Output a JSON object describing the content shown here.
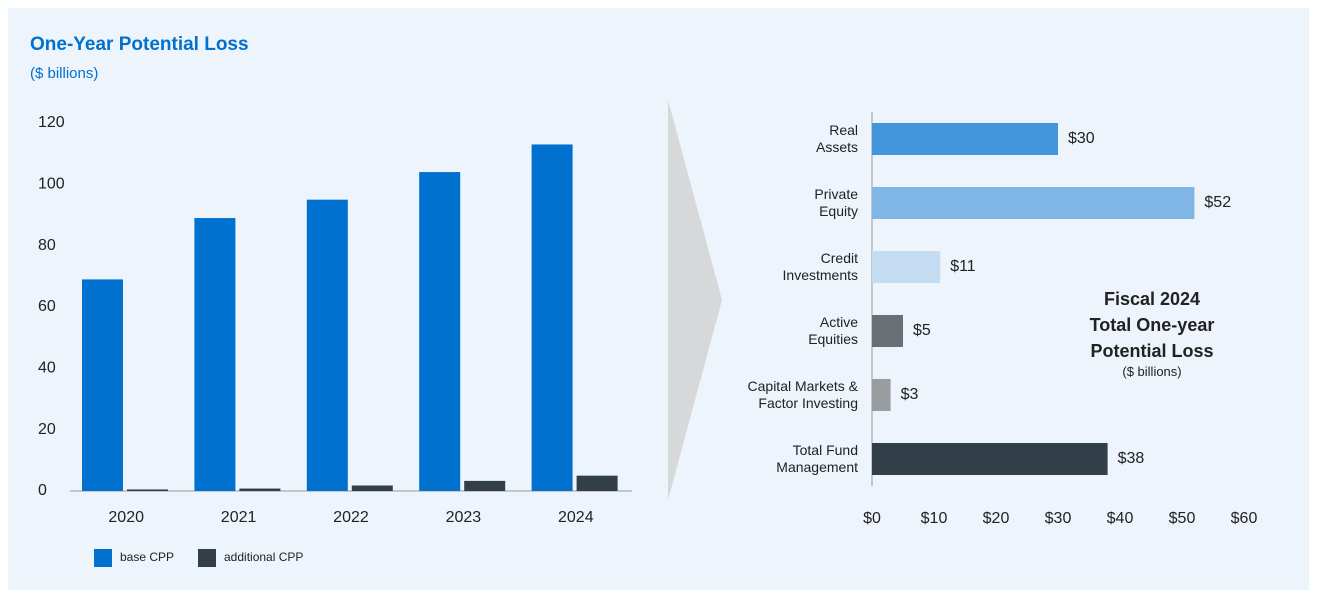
{
  "chart_data": [
    {
      "type": "bar",
      "title": "One-Year Potential Loss",
      "subtitle": "($ billions)",
      "categories": [
        "2020",
        "2021",
        "2022",
        "2023",
        "2024"
      ],
      "series": [
        {
          "name": "base CPP",
          "color": "#0071ce",
          "values": [
            69,
            89,
            95,
            104,
            113
          ]
        },
        {
          "name": "additional CPP",
          "color": "#333f48",
          "values": [
            0.5,
            0.8,
            1.8,
            3.3,
            5
          ]
        }
      ],
      "ylim": [
        0,
        120
      ],
      "yticks": [
        0,
        20,
        40,
        60,
        80,
        100,
        120
      ],
      "legend": "bottom-left"
    },
    {
      "type": "hbar",
      "annotation_title": "Fiscal 2024\nTotal One-year\nPotential Loss",
      "annotation_subtitle": "($ billions)",
      "categories": [
        "Real\nAssets",
        "Private\nEquity",
        "Credit\nInvestments",
        "Active\nEquities",
        "Capital Markets &\nFactor Investing",
        "Total Fund\nManagement"
      ],
      "values": [
        30,
        52,
        11,
        5,
        3,
        38
      ],
      "value_labels": [
        "$30",
        "$52",
        "$11",
        "$5",
        "$3",
        "$38"
      ],
      "colors": [
        "#4496dc",
        "#7fb6e6",
        "#c4dcf2",
        "#6a6f75",
        "#9a9da0",
        "#333f48"
      ],
      "xlim": [
        0,
        60
      ],
      "xticks": [
        {
          "value": 0,
          "label": "$0"
        },
        {
          "value": 10,
          "label": "$10"
        },
        {
          "value": 20,
          "label": "$20"
        },
        {
          "value": 30,
          "label": "$30"
        },
        {
          "value": 40,
          "label": "$40"
        },
        {
          "value": 50,
          "label": "$50"
        },
        {
          "value": 60,
          "label": "$60"
        }
      ]
    }
  ]
}
